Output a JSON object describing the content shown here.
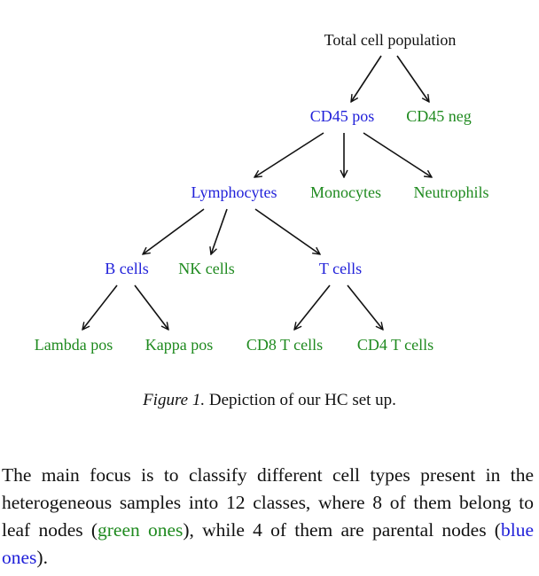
{
  "figure": {
    "nodes": {
      "total": "Total cell population",
      "cd45pos": "CD45 pos",
      "cd45neg": "CD45 neg",
      "lymphocytes": "Lymphocytes",
      "monocytes": "Monocytes",
      "neutrophils": "Neutrophils",
      "bcells": "B cells",
      "nkcells": "NK cells",
      "tcells": "T cells",
      "lambda": "Lambda pos",
      "kappa": "Kappa pos",
      "cd8": "CD8 T cells",
      "cd4": "CD4 T cells"
    },
    "colors": {
      "parent": "#1f1fd9",
      "leaf": "#1f8a1f",
      "root": "#111111"
    },
    "caption_label": "Figure 1.",
    "caption_text": " Depiction of our HC set up."
  },
  "paragraph": {
    "p1": "The main focus is to classify different cell types present in the heterogeneous samples into 12 classes, where 8 of them belong to leaf nodes (",
    "green_ones": "green ones",
    "p2": "), while 4 of them are parental nodes (",
    "blue_ones": "blue ones",
    "p3": ")."
  }
}
